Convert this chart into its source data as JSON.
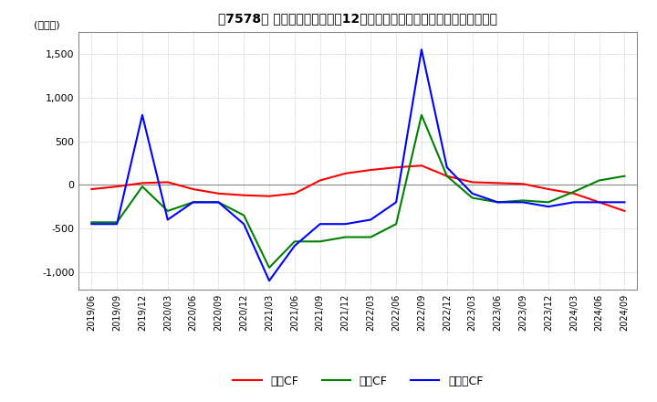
{
  "title": "【7578】 キャッシュフローの12か月移動合計の対前年同期増減額の推移",
  "ylabel": "(百万円)",
  "ylim": [
    -1200,
    1750
  ],
  "yticks": [
    -1000,
    -500,
    0,
    500,
    1000,
    1500
  ],
  "background_color": "#ffffff",
  "plot_bg_color": "#ffffff",
  "grid_color": "#aaaaaa",
  "dates": [
    "2019/06",
    "2019/09",
    "2019/12",
    "2020/03",
    "2020/06",
    "2020/09",
    "2020/12",
    "2021/03",
    "2021/06",
    "2021/09",
    "2021/12",
    "2022/03",
    "2022/06",
    "2022/09",
    "2022/12",
    "2023/03",
    "2023/06",
    "2023/09",
    "2023/12",
    "2024/03",
    "2024/06",
    "2024/09"
  ],
  "operating_cf": [
    -50,
    -20,
    20,
    30,
    -50,
    -100,
    -120,
    -130,
    -100,
    50,
    130,
    170,
    200,
    220,
    100,
    30,
    20,
    10,
    -50,
    -100,
    -200,
    -300
  ],
  "investing_cf": [
    -430,
    -430,
    -20,
    -300,
    -200,
    -200,
    -350,
    -950,
    -650,
    -650,
    -600,
    -600,
    -450,
    800,
    100,
    -150,
    -200,
    -180,
    -200,
    -80,
    50,
    100
  ],
  "free_cf": [
    -450,
    -450,
    800,
    -400,
    -200,
    -200,
    -450,
    -1100,
    -700,
    -450,
    -450,
    -400,
    -200,
    1550,
    200,
    -100,
    -200,
    -200,
    -250,
    -200,
    -200,
    -200
  ],
  "op_color": "#ff0000",
  "inv_color": "#008000",
  "free_color": "#0000ff",
  "legend_labels": [
    "営業CF",
    "投資CF",
    "フリーCF"
  ]
}
